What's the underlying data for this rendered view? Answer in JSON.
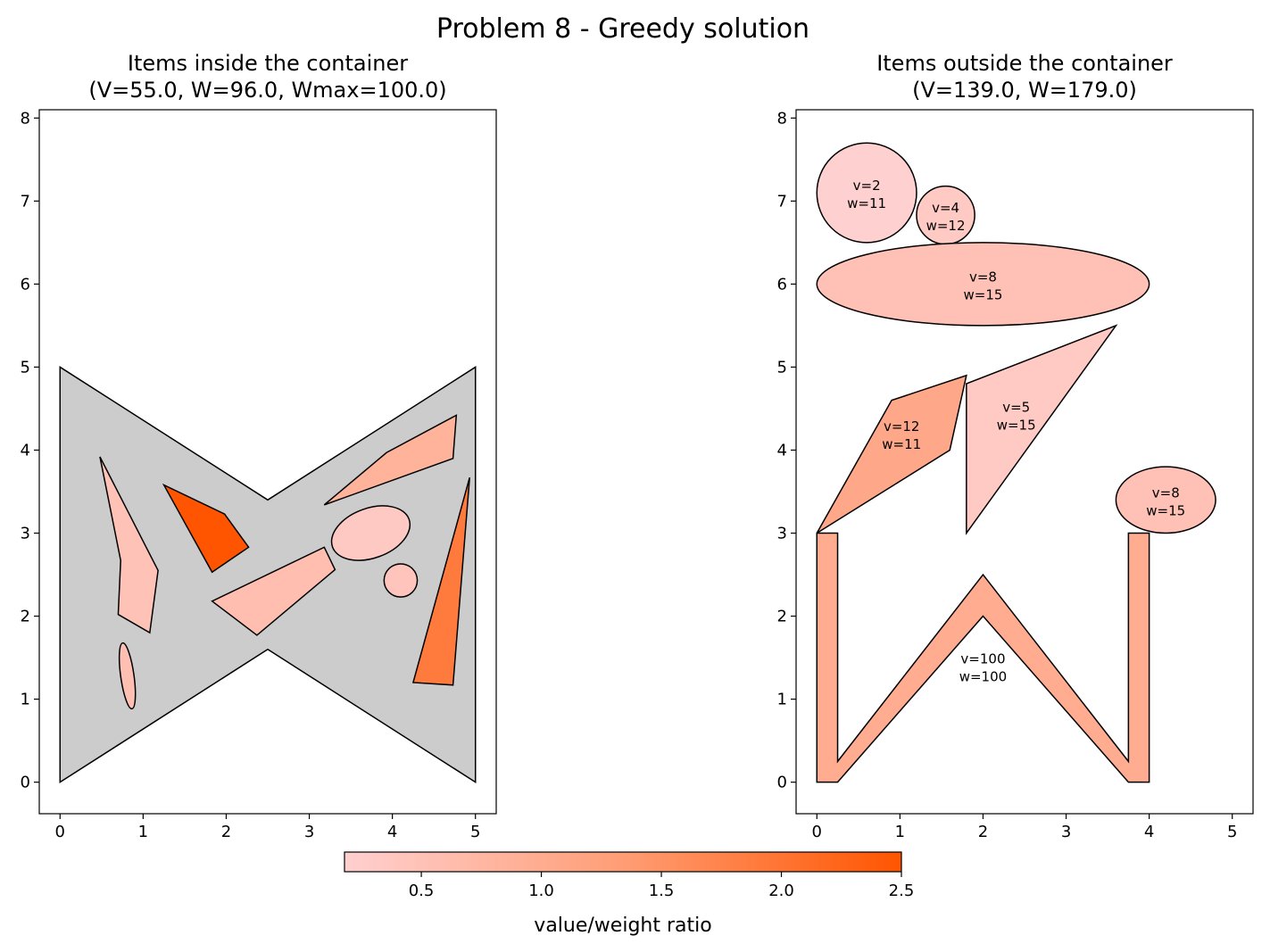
{
  "figure": {
    "suptitle": "Problem 8 - Greedy solution"
  },
  "chart_data": [
    {
      "type": "polygon-packing",
      "panel": "inside",
      "title_line1": "Items inside the container",
      "title_line2": "(V=55.0, W=96.0, Wmax=100.0)",
      "xlim": [
        -0.25,
        5.25
      ],
      "ylim": [
        -0.38,
        8.1
      ],
      "xticks": [
        0,
        1,
        2,
        3,
        4,
        5
      ],
      "yticks": [
        0,
        1,
        2,
        3,
        4,
        5,
        6,
        7,
        8
      ],
      "container": {
        "color": "#cccccc",
        "points": [
          [
            0,
            0
          ],
          [
            2.5,
            1.6
          ],
          [
            5,
            0
          ],
          [
            5,
            5
          ],
          [
            2.5,
            3.4
          ],
          [
            0,
            5
          ]
        ]
      },
      "items": [
        {
          "shape": "polygon",
          "ratio": 0.5,
          "points": [
            [
              0.48,
              3.92
            ],
            [
              1.18,
              2.55
            ],
            [
              1.08,
              1.8
            ],
            [
              0.7,
              2.02
            ],
            [
              0.73,
              2.67
            ]
          ]
        },
        {
          "shape": "polygon",
          "ratio": 2.5,
          "points": [
            [
              1.25,
              3.58
            ],
            [
              1.98,
              3.23
            ],
            [
              2.27,
              2.83
            ],
            [
              1.83,
              2.53
            ]
          ]
        },
        {
          "shape": "polygon",
          "ratio": 0.85,
          "points": [
            [
              3.18,
              3.34
            ],
            [
              3.93,
              3.97
            ],
            [
              4.77,
              4.42
            ],
            [
              4.73,
              3.9
            ]
          ]
        },
        {
          "shape": "ellipse",
          "ratio": 0.35,
          "cx": 3.74,
          "cy": 3.0,
          "rx": 0.49,
          "ry": 0.3,
          "angle": -20
        },
        {
          "shape": "ellipse",
          "ratio": 0.45,
          "cx": 4.1,
          "cy": 2.43,
          "rx": 0.2,
          "ry": 0.2,
          "angle": 0
        },
        {
          "shape": "polygon",
          "ratio": 0.6,
          "points": [
            [
              1.83,
              2.18
            ],
            [
              3.18,
              2.83
            ],
            [
              3.31,
              2.56
            ],
            [
              2.37,
              1.77
            ]
          ]
        },
        {
          "shape": "polygon",
          "ratio": 1.9,
          "points": [
            [
              4.93,
              3.67
            ],
            [
              4.25,
              1.2
            ],
            [
              4.73,
              1.17
            ]
          ]
        },
        {
          "shape": "ellipse",
          "ratio": 0.55,
          "cx": 0.81,
          "cy": 1.28,
          "rx": 0.08,
          "ry": 0.4,
          "angle": -8
        }
      ]
    },
    {
      "type": "polygon-packing",
      "panel": "outside",
      "title_line1": "Items outside the container",
      "title_line2": "(V=139.0, W=179.0)",
      "xlim": [
        -0.25,
        5.25
      ],
      "ylim": [
        -0.38,
        8.1
      ],
      "xticks": [
        0,
        1,
        2,
        3,
        4,
        5
      ],
      "yticks": [
        0,
        1,
        2,
        3,
        4,
        5,
        6,
        7,
        8
      ],
      "items": [
        {
          "shape": "ellipse",
          "ratio": 0.18,
          "cx": 0.6,
          "cy": 7.1,
          "rx": 0.6,
          "ry": 0.6,
          "angle": 0,
          "v": "v=2",
          "w": "w=11",
          "lx": 0.6,
          "ly": 7.1
        },
        {
          "shape": "ellipse",
          "ratio": 0.33,
          "cx": 1.55,
          "cy": 6.83,
          "rx": 0.35,
          "ry": 0.35,
          "angle": 0,
          "v": "v=4",
          "w": "w=12",
          "lx": 1.55,
          "ly": 6.83
        },
        {
          "shape": "ellipse",
          "ratio": 0.53,
          "cx": 2.0,
          "cy": 6.0,
          "rx": 2.0,
          "ry": 0.5,
          "angle": 0,
          "v": "v=8",
          "w": "w=15",
          "lx": 2.0,
          "ly": 6.0
        },
        {
          "shape": "polygon",
          "ratio": 1.09,
          "points": [
            [
              0,
              3
            ],
            [
              0.9,
              4.6
            ],
            [
              1.8,
              4.9
            ],
            [
              1.6,
              4.0
            ]
          ],
          "v": "v=12",
          "w": "w=11",
          "lx": 1.02,
          "ly": 4.2
        },
        {
          "shape": "polygon",
          "ratio": 0.33,
          "points": [
            [
              1.8,
              3
            ],
            [
              1.8,
              4.8
            ],
            [
              3.6,
              5.5
            ]
          ],
          "v": "v=5",
          "w": "w=15",
          "lx": 2.4,
          "ly": 4.43
        },
        {
          "shape": "ellipse",
          "ratio": 0.53,
          "cx": 4.2,
          "cy": 3.4,
          "rx": 0.6,
          "ry": 0.4,
          "angle": 0,
          "v": "v=8",
          "w": "w=15",
          "lx": 4.2,
          "ly": 3.4
        },
        {
          "shape": "polygon",
          "ratio": 1.0,
          "points": [
            [
              0,
              0
            ],
            [
              0.25,
              0
            ],
            [
              2,
              2
            ],
            [
              3.75,
              0
            ],
            [
              4,
              0
            ],
            [
              4,
              3
            ],
            [
              3.75,
              3
            ],
            [
              3.75,
              0.25
            ],
            [
              2,
              2.5
            ],
            [
              0.25,
              0.25
            ],
            [
              0.25,
              3
            ],
            [
              0,
              3
            ]
          ],
          "v": "v=100",
          "w": "w=100",
          "lx": 2.0,
          "ly": 1.4
        }
      ]
    }
  ],
  "colorbar": {
    "label": "value/weight ratio",
    "min": 0.18,
    "max": 2.5,
    "ticks": [
      0.5,
      1.0,
      1.5,
      2.0,
      2.5
    ],
    "tick_labels": [
      "0.5",
      "1.0",
      "1.5",
      "2.0",
      "2.5"
    ],
    "color_low": "#ffd0d0",
    "color_mid": "#ff9d75",
    "color_high": "#ff5500"
  }
}
